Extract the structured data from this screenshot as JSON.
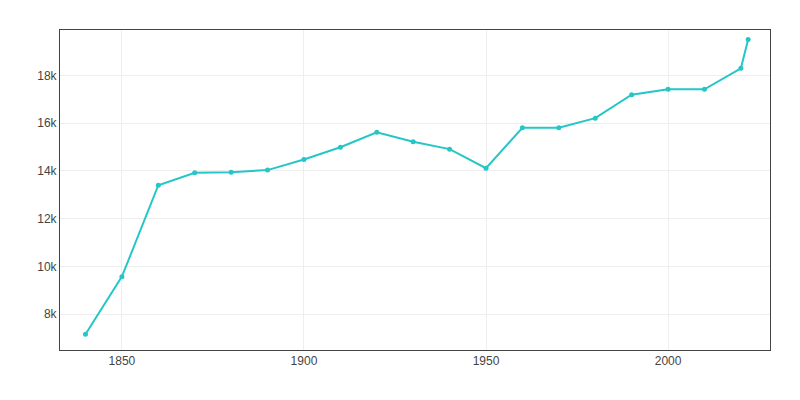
{
  "chart_data": {
    "type": "line",
    "x": [
      1840,
      1850,
      1860,
      1870,
      1880,
      1890,
      1900,
      1910,
      1920,
      1930,
      1940,
      1950,
      1960,
      1970,
      1980,
      1990,
      2000,
      2010,
      2020,
      2022
    ],
    "values": [
      7161,
      9572,
      13401,
      13924,
      13947,
      14033,
      14478,
      14992,
      15618,
      15218,
      14911,
      14111,
      15807,
      15806,
      16209,
      17189,
      17415,
      17416,
      18296,
      19500
    ],
    "color": "#26c6c6",
    "marker": "circle",
    "xlim": [
      1833,
      2028
    ],
    "xticks": [
      1850,
      1900,
      1950,
      2000
    ],
    "ylim": [
      6500,
      19900
    ],
    "yticks": [
      {
        "value": 8000,
        "label": "8k"
      },
      {
        "value": 10000,
        "label": "10k"
      },
      {
        "value": 12000,
        "label": "12k"
      },
      {
        "value": 14000,
        "label": "14k"
      },
      {
        "value": 16000,
        "label": "16k"
      },
      {
        "value": 18000,
        "label": "18k"
      }
    ],
    "grid": true
  }
}
